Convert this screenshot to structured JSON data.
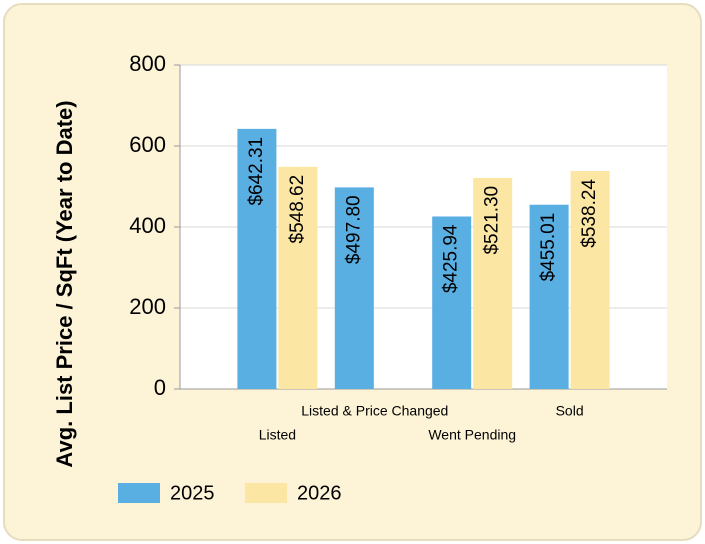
{
  "chart_data": {
    "type": "bar",
    "y_label": "Avg. List Price / SqFt (Year to Date)",
    "categories": [
      "Listed",
      "Listed & Price Changed",
      "Went Pending",
      "Sold"
    ],
    "series": [
      {
        "name": "2025",
        "color": "#5aafe2",
        "values": [
          642.31,
          497.8,
          425.94,
          455.01
        ],
        "value_labels": [
          "$642.31",
          "$497.80",
          "$425.94",
          "$455.01"
        ]
      },
      {
        "name": "2026",
        "color": "#fbe6a4",
        "values": [
          548.62,
          null,
          521.3,
          538.24
        ],
        "value_labels": [
          "$548.62",
          null,
          "$521.30",
          "$538.24"
        ]
      }
    ],
    "ylim": [
      0,
      800
    ],
    "yticks": [
      0,
      200,
      400,
      600,
      800
    ],
    "grid": true
  }
}
